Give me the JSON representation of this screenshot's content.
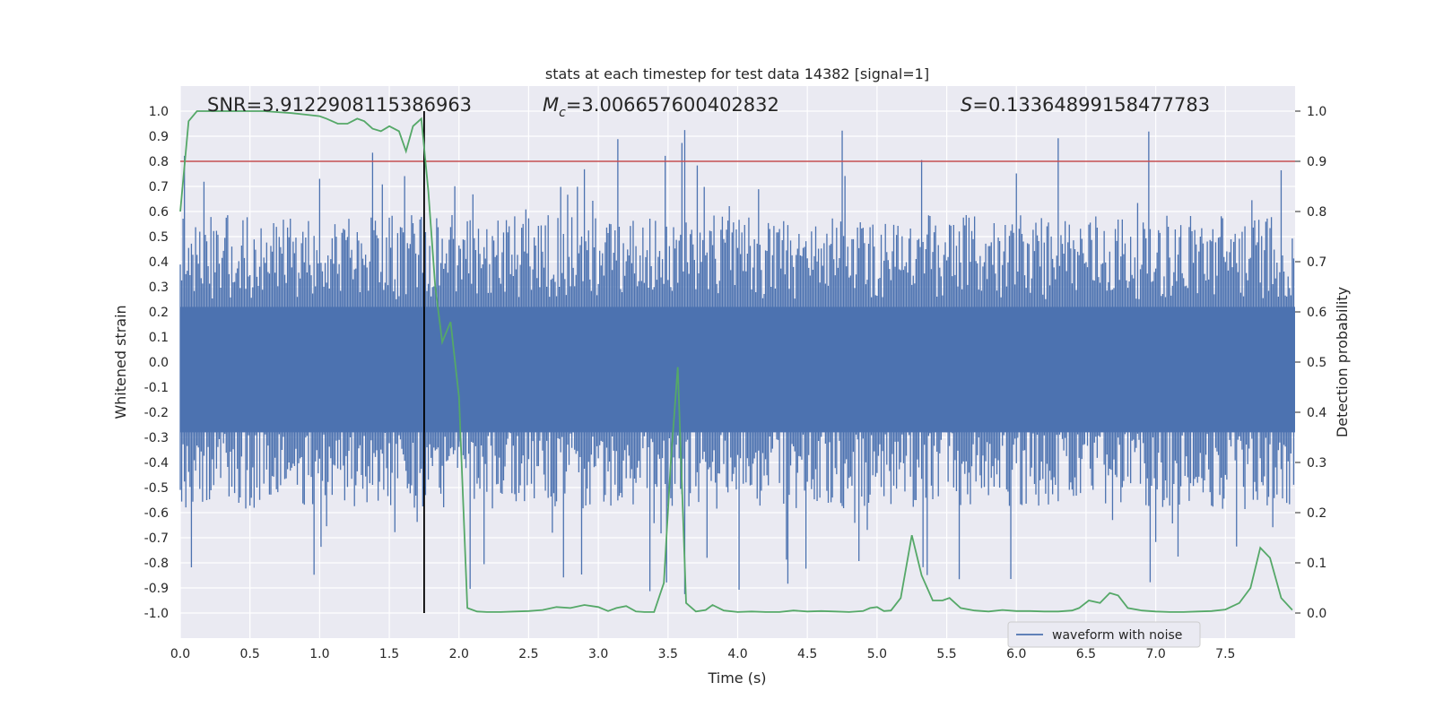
{
  "chart_data": {
    "type": "line",
    "title": "stats at each timestep for test data 14382 [signal=1]",
    "xlabel": "Time (s)",
    "ylabel": "Whitened strain",
    "ylabel_right": "Detection probability",
    "xlim": [
      0.0,
      8.0
    ],
    "ylim": [
      -1.1,
      1.1
    ],
    "ylim_right": [
      -0.05,
      1.05
    ],
    "xticks": [
      "0.0",
      "0.5",
      "1.0",
      "1.5",
      "2.0",
      "2.5",
      "3.0",
      "3.5",
      "4.0",
      "4.5",
      "5.0",
      "5.5",
      "6.0",
      "6.5",
      "7.0",
      "7.5"
    ],
    "yticks": [
      "1.0",
      "0.9",
      "0.8",
      "0.7",
      "0.6",
      "0.5",
      "0.4",
      "0.3",
      "0.2",
      "0.1",
      "0.0",
      "-0.1",
      "-0.2",
      "-0.3",
      "-0.4",
      "-0.5",
      "-0.6",
      "-0.7",
      "-0.8",
      "-0.9",
      "-1.0"
    ],
    "yticks_right": [
      "1.0",
      "0.9",
      "0.8",
      "0.7",
      "0.6",
      "0.5",
      "0.4",
      "0.3",
      "0.2",
      "0.1",
      "0.0"
    ],
    "grid": true,
    "annotations": {
      "snr": "SNR=3.9122908115386963",
      "mc_symbol": "M",
      "mc_sub": "c",
      "mc_value": "=3.006657600402832",
      "s_symbol": "S",
      "s_value": "=0.13364899158477783"
    },
    "threshold_line": {
      "y_right": 0.9,
      "color": "#c44e52"
    },
    "vertical_line": {
      "x": 1.75,
      "color": "#000000"
    },
    "legend": {
      "entries": [
        "waveform with noise"
      ],
      "location": "lower right"
    },
    "waveform": {
      "name": "waveform with noise",
      "color": "#4c72b0",
      "dt": 0.01,
      "note": "dense noise trace; envelope sampled every 0.01 s",
      "seed": 14382
    },
    "probability": {
      "name": "detection probability",
      "color": "#55a868",
      "x": [
        0.0,
        0.06,
        0.12,
        0.2,
        0.3,
        0.4,
        0.5,
        0.6,
        0.7,
        0.8,
        0.9,
        1.0,
        1.05,
        1.13,
        1.2,
        1.27,
        1.32,
        1.38,
        1.44,
        1.5,
        1.57,
        1.62,
        1.67,
        1.73,
        1.78,
        1.83,
        1.88,
        1.94,
        2.0,
        2.06,
        2.13,
        2.2,
        2.3,
        2.4,
        2.5,
        2.6,
        2.7,
        2.8,
        2.9,
        3.0,
        3.07,
        3.13,
        3.2,
        3.27,
        3.33,
        3.4,
        3.47,
        3.52,
        3.57,
        3.63,
        3.7,
        3.77,
        3.82,
        3.9,
        4.0,
        4.1,
        4.2,
        4.3,
        4.4,
        4.5,
        4.6,
        4.7,
        4.8,
        4.9,
        4.95,
        5.0,
        5.05,
        5.1,
        5.17,
        5.25,
        5.32,
        5.4,
        5.47,
        5.52,
        5.6,
        5.7,
        5.8,
        5.9,
        6.0,
        6.1,
        6.2,
        6.3,
        6.4,
        6.45,
        6.52,
        6.6,
        6.67,
        6.73,
        6.8,
        6.9,
        7.0,
        7.1,
        7.2,
        7.3,
        7.4,
        7.5,
        7.6,
        7.68,
        7.75,
        7.82,
        7.9,
        7.98
      ],
      "values": [
        0.8,
        0.98,
        1.0,
        1.0,
        1.0,
        1.0,
        1.0,
        1.0,
        0.998,
        0.996,
        0.993,
        0.99,
        0.985,
        0.975,
        0.975,
        0.985,
        0.98,
        0.965,
        0.96,
        0.97,
        0.96,
        0.92,
        0.97,
        0.985,
        0.84,
        0.65,
        0.54,
        0.58,
        0.43,
        0.01,
        0.003,
        0.002,
        0.002,
        0.003,
        0.004,
        0.006,
        0.012,
        0.01,
        0.016,
        0.012,
        0.004,
        0.01,
        0.014,
        0.003,
        0.002,
        0.002,
        0.06,
        0.3,
        0.49,
        0.02,
        0.003,
        0.006,
        0.016,
        0.005,
        0.002,
        0.003,
        0.002,
        0.002,
        0.005,
        0.003,
        0.004,
        0.003,
        0.002,
        0.004,
        0.01,
        0.012,
        0.004,
        0.005,
        0.03,
        0.155,
        0.075,
        0.025,
        0.025,
        0.03,
        0.01,
        0.005,
        0.003,
        0.006,
        0.004,
        0.004,
        0.003,
        0.003,
        0.005,
        0.01,
        0.025,
        0.02,
        0.04,
        0.035,
        0.01,
        0.005,
        0.003,
        0.002,
        0.002,
        0.003,
        0.004,
        0.007,
        0.02,
        0.05,
        0.13,
        0.11,
        0.03,
        0.006
      ]
    }
  }
}
